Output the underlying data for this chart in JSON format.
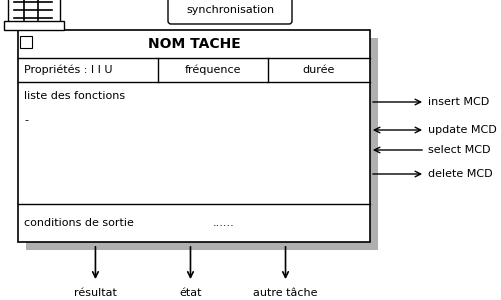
{
  "bg_color": "#ffffff",
  "shadow_color": "#b0b0b0",
  "box_color": "#ffffff",
  "box_edge_color": "#000000",
  "title": "NOM TACHE",
  "sync_label": "synchronisation",
  "props_label": "Propriétés : I I U",
  "freq_label": "fréquence",
  "duree_label": "durée",
  "fonctions_label": "liste des fonctions",
  "dash_label": "-",
  "conditions_label": "conditions de sortie",
  "dots_label": "......",
  "right_labels": [
    "insert MCD",
    "update MCD",
    "select MCD",
    "delete MCD"
  ],
  "right_arrow_styles": [
    "->",
    "<->",
    "<-",
    "->"
  ],
  "bottom_labels": [
    "résultat",
    "état",
    "autre tâche"
  ],
  "font_size": 8,
  "title_font_size": 10
}
